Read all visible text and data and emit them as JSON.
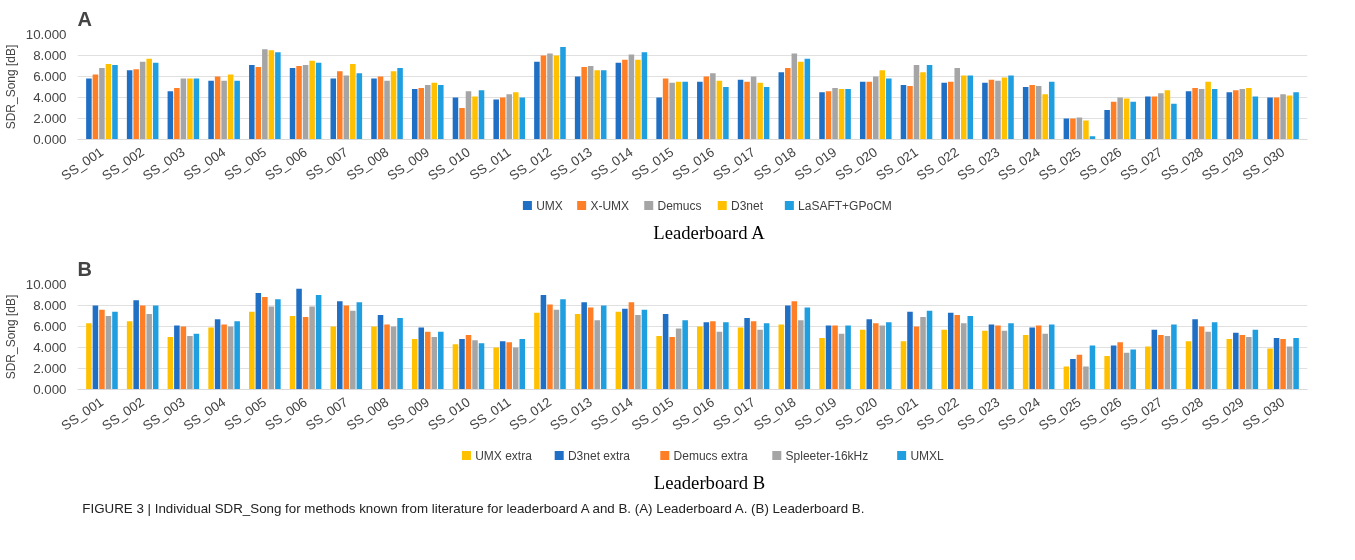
{
  "chart_data": [
    {
      "type": "bar",
      "title": "A",
      "subtitle": "Leaderboard A",
      "ylabel": "SDR_Song [dB]",
      "categories": [
        "SS_001",
        "SS_002",
        "SS_003",
        "SS_004",
        "SS_005",
        "SS_006",
        "SS_007",
        "SS_008",
        "SS_009",
        "SS_010",
        "SS_011",
        "SS_012",
        "SS_013",
        "SS_014",
        "SS_015",
        "SS_016",
        "SS_017",
        "SS_018",
        "SS_019",
        "SS_020",
        "SS_021",
        "SS_022",
        "SS_023",
        "SS_024",
        "SS_025",
        "SS_026",
        "SS_027",
        "SS_028",
        "SS_029",
        "SS_030"
      ],
      "series": [
        {
          "name": "UMX",
          "color": "#1f6fc5",
          "values": [
            5.8,
            6.6,
            4.6,
            5.6,
            7.1,
            6.8,
            5.8,
            5.8,
            4.8,
            4.0,
            3.8,
            7.4,
            6.0,
            7.3,
            4.0,
            5.5,
            5.7,
            6.4,
            4.5,
            5.5,
            5.2,
            5.4,
            5.4,
            5.0,
            2.0,
            2.8,
            4.1,
            4.6,
            4.5,
            4.0
          ]
        },
        {
          "name": "X-UMX",
          "color": "#ff7f27",
          "values": [
            6.2,
            6.7,
            4.9,
            6.0,
            6.9,
            7.0,
            6.5,
            6.0,
            4.9,
            3.0,
            4.0,
            8.0,
            6.9,
            7.6,
            5.8,
            6.0,
            5.5,
            6.8,
            4.6,
            5.5,
            5.1,
            5.5,
            5.7,
            5.2,
            2.0,
            3.6,
            4.1,
            4.9,
            4.7,
            4.0
          ]
        },
        {
          "name": "Demucs",
          "color": "#a5a5a5",
          "values": [
            6.8,
            7.4,
            5.8,
            5.6,
            8.6,
            7.1,
            6.1,
            5.6,
            5.2,
            4.6,
            4.3,
            8.2,
            7.0,
            8.1,
            5.4,
            6.3,
            6.0,
            8.2,
            4.9,
            6.0,
            7.1,
            6.8,
            5.6,
            5.1,
            2.1,
            4.0,
            4.4,
            4.8,
            4.8,
            4.3
          ]
        },
        {
          "name": "D3net",
          "color": "#ffc000",
          "values": [
            7.2,
            7.7,
            5.8,
            6.2,
            8.5,
            7.5,
            7.2,
            6.5,
            5.4,
            4.1,
            4.5,
            8.0,
            6.6,
            7.6,
            5.5,
            5.6,
            5.4,
            7.4,
            4.8,
            6.6,
            6.4,
            6.1,
            5.9,
            4.3,
            1.8,
            3.9,
            4.7,
            5.5,
            4.9,
            4.2
          ]
        },
        {
          "name": "LaSAFT+GPoCM",
          "color": "#1f9ee0",
          "values": [
            7.1,
            7.3,
            5.8,
            5.6,
            8.3,
            7.3,
            6.3,
            6.8,
            5.2,
            4.7,
            4.0,
            8.8,
            6.6,
            8.3,
            5.5,
            5.0,
            5.0,
            7.7,
            4.8,
            5.8,
            7.1,
            6.1,
            6.1,
            5.5,
            0.3,
            3.6,
            3.4,
            4.8,
            4.1,
            4.5
          ]
        }
      ],
      "ylim": [
        0,
        10
      ],
      "yticks": [
        {
          "value": 0,
          "label": "0.000"
        },
        {
          "value": 2,
          "label": "2.000"
        },
        {
          "value": 4,
          "label": "4.000"
        },
        {
          "value": 6,
          "label": "6.000"
        },
        {
          "value": 8,
          "label": "8.000"
        },
        {
          "value": 10,
          "label": "10.000"
        }
      ],
      "grid": "y",
      "legend": "bottom"
    },
    {
      "type": "bar",
      "title": "B",
      "subtitle": "Leaderboard B",
      "ylabel": "SDR_Song [dB]",
      "categories": [
        "SS_001",
        "SS_002",
        "SS_003",
        "SS_004",
        "SS_005",
        "SS_006",
        "SS_007",
        "SS_008",
        "SS_009",
        "SS_010",
        "SS_011",
        "SS_012",
        "SS_013",
        "SS_014",
        "SS_015",
        "SS_016",
        "SS_017",
        "SS_018",
        "SS_019",
        "SS_020",
        "SS_021",
        "SS_022",
        "SS_023",
        "SS_024",
        "SS_025",
        "SS_026",
        "SS_027",
        "SS_028",
        "SS_029",
        "SS_030"
      ],
      "series": [
        {
          "name": "UMX extra",
          "color": "#ffc000",
          "values": [
            6.3,
            6.5,
            5.0,
            5.9,
            7.4,
            7.0,
            6.0,
            6.0,
            4.8,
            4.3,
            4.0,
            7.3,
            7.2,
            7.4,
            5.1,
            6.0,
            5.9,
            6.2,
            4.9,
            5.7,
            4.6,
            5.7,
            5.6,
            5.2,
            2.2,
            3.2,
            4.1,
            4.6,
            4.8,
            3.9
          ]
        },
        {
          "name": "D3net extra",
          "color": "#1f6fc5",
          "values": [
            8.0,
            8.5,
            6.1,
            6.7,
            9.2,
            9.6,
            8.4,
            7.1,
            5.9,
            4.8,
            4.6,
            9.0,
            8.3,
            7.7,
            7.2,
            6.4,
            6.8,
            8.0,
            6.1,
            6.7,
            7.4,
            7.3,
            6.2,
            5.9,
            2.9,
            4.2,
            5.7,
            6.7,
            5.4,
            4.9
          ]
        },
        {
          "name": "Demucs extra",
          "color": "#ff7f27",
          "values": [
            7.6,
            8.0,
            6.0,
            6.2,
            8.8,
            6.9,
            8.0,
            6.2,
            5.5,
            5.2,
            4.5,
            8.1,
            7.8,
            8.3,
            5.0,
            6.5,
            6.5,
            8.4,
            6.1,
            6.3,
            6.0,
            7.1,
            6.1,
            6.1,
            3.3,
            4.5,
            5.2,
            6.0,
            5.2,
            4.8
          ]
        },
        {
          "name": "Spleeter-16kHz",
          "color": "#a5a5a5",
          "values": [
            7.0,
            7.2,
            5.1,
            6.0,
            7.9,
            7.9,
            7.5,
            6.0,
            5.0,
            4.7,
            4.0,
            7.6,
            6.6,
            7.1,
            5.8,
            5.5,
            5.7,
            6.6,
            5.3,
            6.1,
            6.9,
            6.3,
            5.6,
            5.3,
            2.2,
            3.5,
            5.1,
            5.5,
            5.0,
            4.1
          ]
        },
        {
          "name": "UMXL",
          "color": "#1f9ee0",
          "values": [
            7.4,
            8.0,
            5.3,
            6.5,
            8.6,
            9.0,
            8.3,
            6.8,
            5.5,
            4.4,
            4.8,
            8.6,
            8.0,
            7.6,
            6.6,
            6.4,
            6.3,
            7.8,
            6.1,
            6.4,
            7.5,
            7.0,
            6.3,
            6.2,
            4.2,
            3.8,
            6.2,
            6.4,
            5.7,
            4.9
          ]
        }
      ],
      "ylim": [
        0,
        10
      ],
      "yticks": [
        {
          "value": 0,
          "label": "0.000"
        },
        {
          "value": 2,
          "label": "2.000"
        },
        {
          "value": 4,
          "label": "4.000"
        },
        {
          "value": 6,
          "label": "6.000"
        },
        {
          "value": 8,
          "label": "8.000"
        },
        {
          "value": 10,
          "label": "10.000"
        }
      ],
      "grid": "y",
      "legend": "bottom",
      "annotations": [
        "FIGURE 3 | Individual SDR_Song for methods known from literature for leaderboard A and B. (A) Leaderboard A. (B) Leaderboard B."
      ]
    }
  ]
}
